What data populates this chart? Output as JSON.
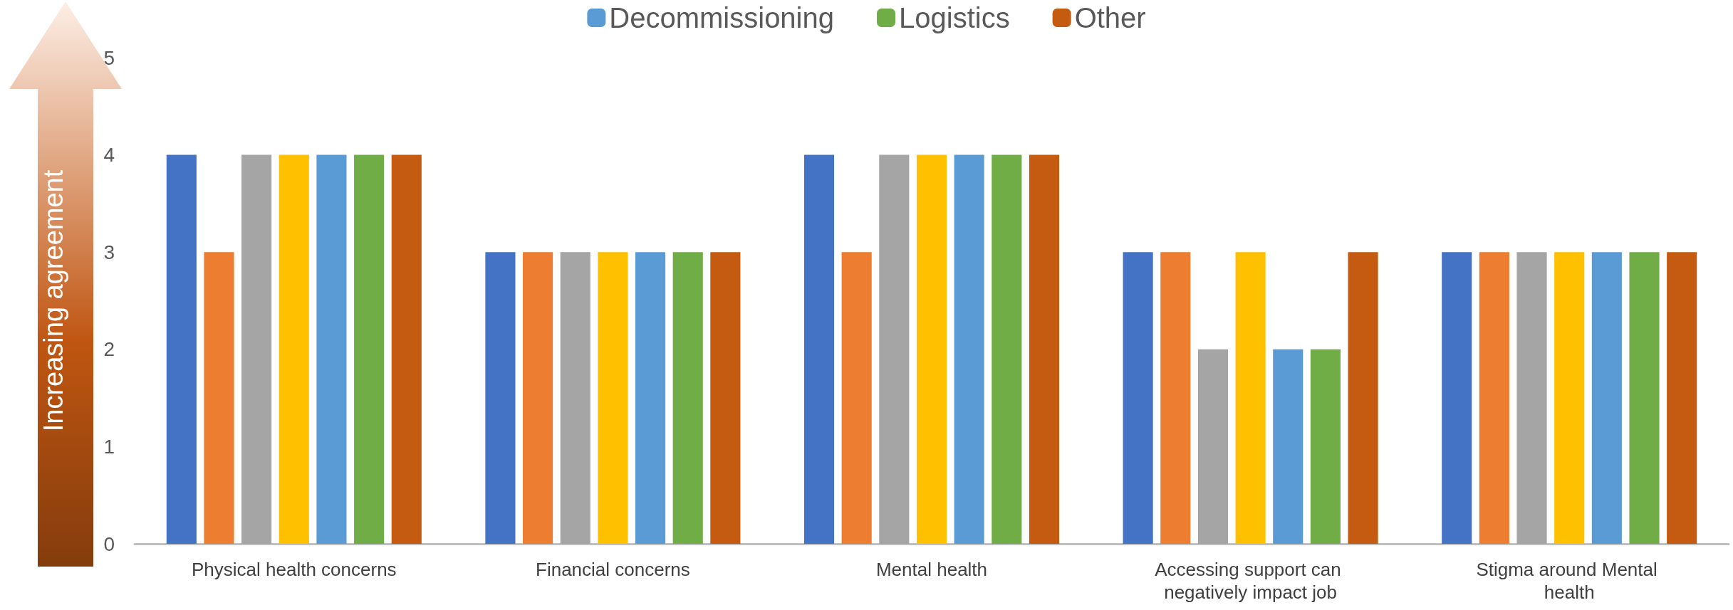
{
  "chart_data": {
    "type": "bar",
    "ylabel": "Increasing agreement",
    "categories": [
      "Physical health concerns",
      "Financial concerns",
      "Mental health",
      "Accessing support can negatively impact job",
      "Stigma around Mental health"
    ],
    "series": [
      {
        "color": "#4472c4",
        "values": [
          4,
          3,
          4,
          3,
          3
        ]
      },
      {
        "color": "#ed7d31",
        "values": [
          3,
          3,
          3,
          3,
          3
        ]
      },
      {
        "color": "#a5a5a5",
        "values": [
          4,
          3,
          4,
          2,
          3
        ]
      },
      {
        "color": "#ffc000",
        "values": [
          4,
          3,
          4,
          3,
          3
        ]
      },
      {
        "name": "Decommissioning",
        "color": "#5b9bd5",
        "values": [
          4,
          3,
          4,
          2,
          3
        ]
      },
      {
        "name": "Logistics",
        "color": "#70ad47",
        "values": [
          4,
          3,
          4,
          2,
          3
        ]
      },
      {
        "name": "Other",
        "color": "#c55a11",
        "values": [
          4,
          3,
          4,
          3,
          3
        ]
      }
    ],
    "ylim": [
      0,
      5
    ],
    "yticks": [
      0,
      1,
      2,
      3,
      4,
      5
    ],
    "grid": false,
    "legend": "top"
  }
}
